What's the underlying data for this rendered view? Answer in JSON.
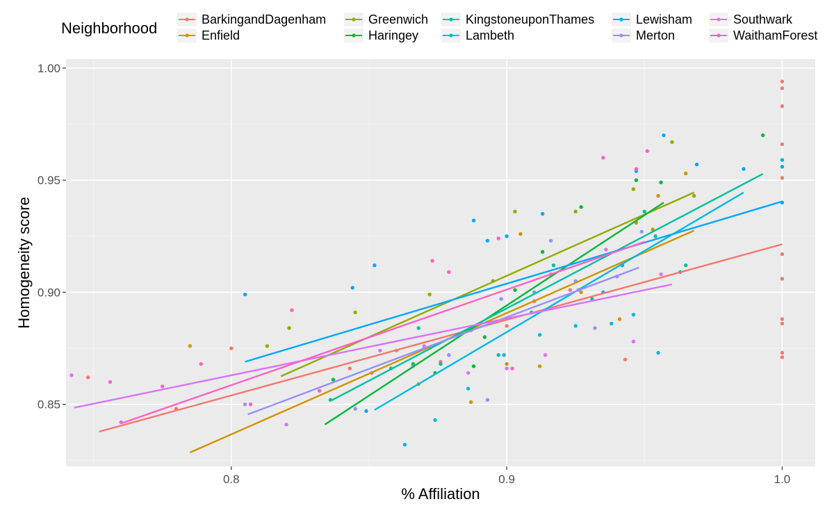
{
  "chart_data": {
    "type": "scatter",
    "title": "",
    "xlabel": "% Affiliation",
    "ylabel": "Homogeneity score",
    "xlim": [
      0.74,
      1.012
    ],
    "ylim": [
      0.8223,
      1.004
    ],
    "x_ticks": [
      0.8,
      0.9,
      1.0
    ],
    "x_tick_labels": [
      "0.8",
      "0.9",
      "1.0"
    ],
    "y_ticks": [
      0.85,
      0.9,
      0.95,
      1.0
    ],
    "y_tick_labels": [
      "0.85",
      "0.90",
      "0.95",
      "1.00"
    ],
    "grid": true,
    "legend": {
      "title": "Neighborhood",
      "position": "top"
    },
    "series": [
      {
        "name": "BarkingandDagenham",
        "color": "#F8766D",
        "trend": [
          [
            0.752,
            0.8378
          ],
          [
            1.0,
            0.9214
          ]
        ],
        "points": [
          [
            0.748,
            0.862
          ],
          [
            0.78,
            0.848
          ],
          [
            0.8,
            0.875
          ],
          [
            0.843,
            0.866
          ],
          [
            0.86,
            0.874
          ],
          [
            0.876,
            0.869
          ],
          [
            0.887,
            0.883
          ],
          [
            0.9,
            0.885
          ],
          [
            0.91,
            0.896
          ],
          [
            0.923,
            0.901
          ],
          [
            0.943,
            0.87
          ],
          [
            1.0,
            0.994
          ],
          [
            1.0,
            0.991
          ],
          [
            1.0,
            0.983
          ],
          [
            1.0,
            0.966
          ],
          [
            1.0,
            0.951
          ],
          [
            1.0,
            0.917
          ],
          [
            1.0,
            0.906
          ],
          [
            1.0,
            0.888
          ],
          [
            1.0,
            0.886
          ],
          [
            1.0,
            0.873
          ],
          [
            1.0,
            0.871
          ]
        ]
      },
      {
        "name": "Enfield",
        "color": "#D39200",
        "trend": [
          [
            0.785,
            0.8285
          ],
          [
            0.968,
            0.9275
          ]
        ],
        "points": [
          [
            0.785,
            0.876
          ],
          [
            0.868,
            0.859
          ],
          [
            0.887,
            0.851
          ],
          [
            0.9,
            0.868
          ],
          [
            0.905,
            0.926
          ],
          [
            0.912,
            0.867
          ],
          [
            0.927,
            0.9
          ],
          [
            0.941,
            0.888
          ],
          [
            0.947,
            0.931
          ],
          [
            0.953,
            0.928
          ],
          [
            0.965,
            0.953
          ],
          [
            0.955,
            0.943
          ]
        ]
      },
      {
        "name": "Greenwich",
        "color": "#93AA00",
        "trend": [
          [
            0.818,
            0.8625
          ],
          [
            0.968,
            0.9445
          ]
        ],
        "points": [
          [
            0.813,
            0.876
          ],
          [
            0.821,
            0.884
          ],
          [
            0.845,
            0.891
          ],
          [
            0.872,
            0.899
          ],
          [
            0.895,
            0.905
          ],
          [
            0.903,
            0.936
          ],
          [
            0.925,
            0.936
          ],
          [
            0.946,
            0.946
          ],
          [
            0.96,
            0.967
          ],
          [
            0.968,
            0.943
          ]
        ]
      },
      {
        "name": "Haringey",
        "color": "#00BA38",
        "trend": [
          [
            0.834,
            0.841
          ],
          [
            0.957,
            0.94
          ]
        ],
        "points": [
          [
            0.837,
            0.861
          ],
          [
            0.866,
            0.868
          ],
          [
            0.874,
            0.864
          ],
          [
            0.888,
            0.867
          ],
          [
            0.892,
            0.88
          ],
          [
            0.903,
            0.901
          ],
          [
            0.913,
            0.918
          ],
          [
            0.927,
            0.938
          ],
          [
            0.935,
            0.916
          ],
          [
            0.947,
            0.95
          ],
          [
            0.956,
            0.949
          ],
          [
            0.993,
            0.97
          ]
        ]
      },
      {
        "name": "KingstoneuponThames",
        "color": "#00C19F",
        "trend": [
          [
            0.836,
            0.8515
          ],
          [
            0.993,
            0.9528
          ]
        ],
        "points": [
          [
            0.836,
            0.852
          ],
          [
            0.858,
            0.866
          ],
          [
            0.868,
            0.884
          ],
          [
            0.876,
            0.868
          ],
          [
            0.897,
            0.872
          ],
          [
            0.909,
            0.891
          ],
          [
            0.917,
            0.912
          ],
          [
            0.931,
            0.897
          ],
          [
            0.942,
            0.912
          ],
          [
            0.95,
            0.936
          ],
          [
            0.954,
            0.925
          ],
          [
            0.965,
            0.912
          ]
        ]
      },
      {
        "name": "Lambeth",
        "color": "#00B9E3",
        "trend": [
          [
            0.852,
            0.8475
          ],
          [
            0.986,
            0.9445
          ]
        ],
        "points": [
          [
            0.863,
            0.832
          ],
          [
            0.874,
            0.843
          ],
          [
            0.886,
            0.857
          ],
          [
            0.899,
            0.872
          ],
          [
            0.912,
            0.881
          ],
          [
            0.925,
            0.885
          ],
          [
            0.938,
            0.886
          ],
          [
            0.946,
            0.89
          ],
          [
            0.955,
            0.873
          ],
          [
            0.963,
            0.909
          ]
        ]
      },
      {
        "name": "Lewisham",
        "color": "#00A9FF",
        "trend": [
          [
            0.805,
            0.869
          ],
          [
            1.0,
            0.9405
          ]
        ],
        "points": [
          [
            0.805,
            0.899
          ],
          [
            0.844,
            0.902
          ],
          [
            0.849,
            0.847
          ],
          [
            0.852,
            0.912
          ],
          [
            0.888,
            0.932
          ],
          [
            0.893,
            0.923
          ],
          [
            0.9,
            0.925
          ],
          [
            0.913,
            0.935
          ],
          [
            0.935,
            0.9
          ],
          [
            0.947,
            0.954
          ],
          [
            0.957,
            0.97
          ],
          [
            0.969,
            0.957
          ],
          [
            0.986,
            0.955
          ],
          [
            1.0,
            0.959
          ],
          [
            1.0,
            0.956
          ],
          [
            1.0,
            0.94
          ]
        ]
      },
      {
        "name": "Merton",
        "color": "#9590FF",
        "trend": [
          [
            0.806,
            0.8455
          ],
          [
            0.948,
            0.911
          ]
        ],
        "points": [
          [
            0.805,
            0.85
          ],
          [
            0.845,
            0.848
          ],
          [
            0.866,
            0.867
          ],
          [
            0.879,
            0.872
          ],
          [
            0.893,
            0.852
          ],
          [
            0.898,
            0.897
          ],
          [
            0.91,
            0.9
          ],
          [
            0.916,
            0.923
          ],
          [
            0.925,
            0.905
          ],
          [
            0.932,
            0.884
          ],
          [
            0.94,
            0.907
          ],
          [
            0.949,
            0.927
          ]
        ]
      },
      {
        "name": "Southwark",
        "color": "#DB72FB",
        "trend": [
          [
            0.743,
            0.8485
          ],
          [
            0.96,
            0.9035
          ]
        ],
        "points": [
          [
            0.742,
            0.863
          ],
          [
            0.76,
            0.842
          ],
          [
            0.82,
            0.841
          ],
          [
            0.854,
            0.874
          ],
          [
            0.87,
            0.876
          ],
          [
            0.886,
            0.864
          ],
          [
            0.9,
            0.866
          ],
          [
            0.914,
            0.872
          ],
          [
            0.926,
            0.901
          ],
          [
            0.936,
            0.919
          ],
          [
            0.946,
            0.878
          ],
          [
            0.956,
            0.908
          ]
        ]
      },
      {
        "name": "WaithamForest",
        "color": "#FF61C3",
        "trend": [
          [
            0.76,
            0.8415
          ],
          [
            0.95,
            0.9225
          ]
        ],
        "points": [
          [
            0.756,
            0.86
          ],
          [
            0.775,
            0.858
          ],
          [
            0.789,
            0.868
          ],
          [
            0.807,
            0.85
          ],
          [
            0.822,
            0.892
          ],
          [
            0.832,
            0.856
          ],
          [
            0.851,
            0.864
          ],
          [
            0.873,
            0.914
          ],
          [
            0.879,
            0.909
          ],
          [
            0.897,
            0.924
          ],
          [
            0.902,
            0.866
          ],
          [
            0.916,
            0.908
          ],
          [
            0.935,
            0.96
          ],
          [
            0.947,
            0.955
          ],
          [
            0.951,
            0.963
          ]
        ]
      }
    ]
  }
}
